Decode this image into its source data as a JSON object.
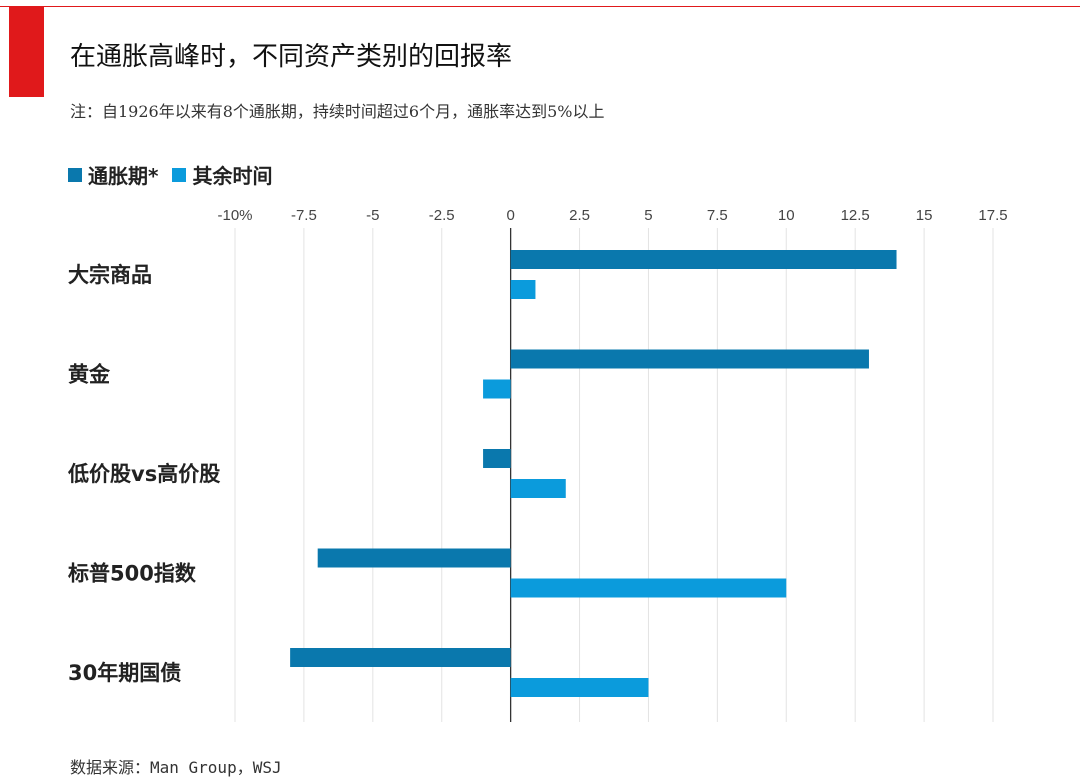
{
  "header": {
    "title": "在通胀高峰时，不同资产类别的回报率",
    "note": "注：自1926年以来有8个通胀期，持续时间超过6个月，通胀率达到5%以上",
    "source": "数据来源：Man Group，WSJ"
  },
  "colors": {
    "accent": "#e0191b",
    "series_inflation": "#0a78ad",
    "series_rest": "#0b9bdc",
    "grid": "#e3e3e3",
    "zero_axis": "#333333"
  },
  "chart_data": {
    "type": "bar",
    "orientation": "horizontal",
    "categories": [
      "大宗商品",
      "黄金",
      "低价股vs高价股",
      "标普500指数",
      "30年期国债"
    ],
    "series": [
      {
        "name": "通胀期*",
        "values": [
          14.0,
          13.0,
          -1.0,
          -7.0,
          -8.0
        ]
      },
      {
        "name": "其余时间",
        "values": [
          0.9,
          -1.0,
          2.0,
          10.0,
          5.0
        ]
      }
    ],
    "xlim": [
      -10,
      17.5
    ],
    "xticks": [
      -10,
      -7.5,
      -5,
      -2.5,
      0,
      2.5,
      5,
      7.5,
      10,
      12.5,
      15,
      17.5
    ],
    "xtick_labels": [
      "-10%",
      "-7.5",
      "-5",
      "-2.5",
      "0",
      "2.5",
      "5",
      "7.5",
      "10",
      "12.5",
      "15",
      "17.5"
    ],
    "grid": true,
    "legend_position": "top-left",
    "xlabel": "",
    "ylabel": ""
  }
}
